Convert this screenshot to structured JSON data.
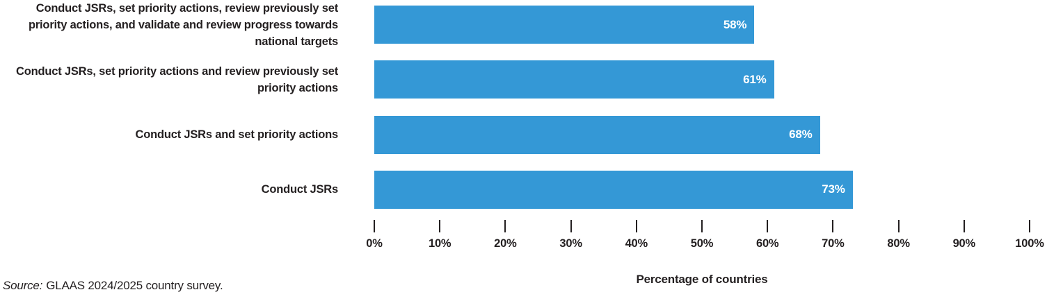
{
  "chart_data": {
    "type": "bar",
    "orientation": "horizontal",
    "categories": [
      "Conduct JSRs, set priority actions, review previously set priority actions, and validate and review progress towards national targets",
      "Conduct JSRs, set priority actions and review previously set priority actions",
      "Conduct JSRs and set priority actions",
      "Conduct JSRs"
    ],
    "values": [
      58,
      61,
      68,
      73
    ],
    "value_labels": [
      "58%",
      "61%",
      "68%",
      "73%"
    ],
    "title": "",
    "xlabel": "Percentage of countries",
    "ylabel": "",
    "xlim": [
      0,
      100
    ],
    "x_ticks": [
      "0%",
      "10%",
      "20%",
      "30%",
      "40%",
      "50%",
      "60%",
      "70%",
      "80%",
      "90%",
      "100%"
    ],
    "grid": false,
    "legend": "none",
    "bar_color": "#3498d6",
    "bar_value_text_color": "#ffffff",
    "tick_color": "#231f20"
  },
  "source_note": {
    "prefix": "Source:",
    "text": "GLAAS 2024/2025 country survey."
  }
}
